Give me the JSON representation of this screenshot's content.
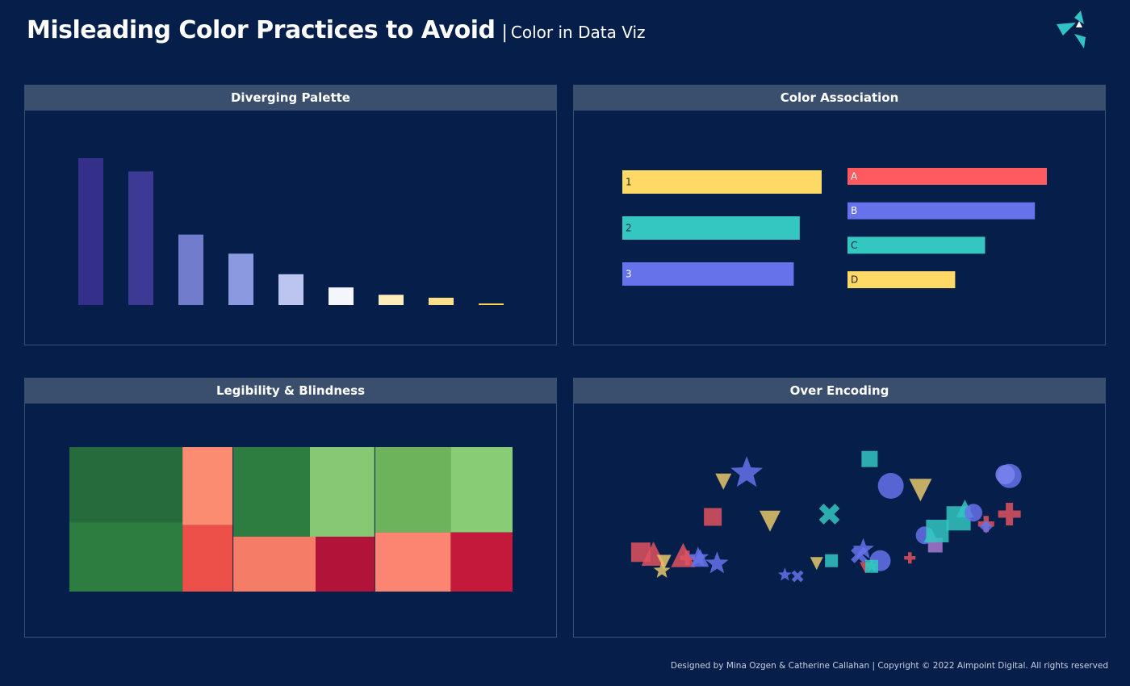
{
  "header": {
    "title": "Misleading Color Practices to Avoid",
    "separator": "|",
    "subtitle": "Color in Data Viz"
  },
  "panels": {
    "diverging": {
      "title": "Diverging Palette"
    },
    "association": {
      "title": "Color Association"
    },
    "legibility": {
      "title": "Legibility & Blindness"
    },
    "overencoding": {
      "title": "Over Encoding"
    }
  },
  "footer": {
    "credit": "Designed by Mina Ozgen & Catherine Callahan | Copyright © 2022 Aimpoint Digital. All rights reserved"
  },
  "colors": {
    "background": "#061e4a",
    "panel_header": "#3a4e6e",
    "accent_teal": "#32c4c4",
    "red": "#ff5a5f",
    "blue": "#6572ea",
    "teal": "#34c6c1",
    "yellow": "#ffd966"
  },
  "chart_data": [
    {
      "type": "bar",
      "values": [
        100,
        91,
        48,
        35,
        21,
        12,
        7,
        5,
        1
      ],
      "colors": [
        "#332f8a",
        "#3c3a94",
        "#717dcc",
        "#8b9ae0",
        "#bcc5ef",
        "#f4f6fd",
        "#ffecbd",
        "#ffe08a",
        "#ffd24d"
      ],
      "ylim": [
        0,
        100
      ]
    },
    {
      "type": "bar",
      "orientation": "horizontal",
      "groups": [
        {
          "categories": [
            "1",
            "2",
            "3"
          ],
          "values": [
            100,
            89,
            86
          ],
          "colors": [
            "#ffd966",
            "#34c6c1",
            "#6572ea"
          ]
        },
        {
          "categories": [
            "A",
            "B",
            "C",
            "D"
          ],
          "values": [
            100,
            94,
            69,
            54
          ],
          "colors": [
            "#ff5a5f",
            "#6572ea",
            "#34c6c1",
            "#ffd966"
          ]
        }
      ],
      "xlim": [
        0,
        100
      ]
    },
    {
      "type": "heatmap",
      "layout": "treemap",
      "groups": [
        {
          "weight": 37,
          "cells": [
            {
              "weight": 60,
              "value": 4,
              "color": "#256b3c"
            },
            {
              "weight": 40,
              "value": 5,
              "color": "#2e7d40"
            },
            {
              "weight": 30,
              "value": -2,
              "color": "#fb8c72"
            },
            {
              "weight": 25,
              "value": -3,
              "color": "#ec5048"
            }
          ]
        },
        {
          "weight": 32,
          "cells": [
            {
              "weight": 45,
              "value": 5,
              "color": "#2e7d40"
            },
            {
              "weight": 35,
              "value": 2,
              "color": "#86c874"
            },
            {
              "weight": 42,
              "value": -2,
              "color": "#f57d67"
            },
            {
              "weight": 28,
              "value": -5,
              "color": "#b21338"
            }
          ]
        },
        {
          "weight": 31,
          "cells": [
            {
              "weight": 45,
              "value": 3,
              "color": "#6cb35c"
            },
            {
              "weight": 40,
              "value": 2,
              "color": "#88cc76"
            },
            {
              "weight": 35,
              "value": -2,
              "color": "#fb8570"
            },
            {
              "weight": 25,
              "value": -4,
              "color": "#c4193a"
            }
          ]
        }
      ]
    },
    {
      "type": "scatter",
      "xlim": [
        0,
        100
      ],
      "ylim": [
        0,
        100
      ],
      "points": [
        {
          "x": 1.5,
          "y": 29,
          "shape": "square",
          "color": "#e0525f",
          "size": 24
        },
        {
          "x": 4.5,
          "y": 28,
          "shape": "triangle",
          "color": "#e0525f",
          "size": 30
        },
        {
          "x": 7.0,
          "y": 22,
          "shape": "triangle-down",
          "color": "#e6c86a",
          "size": 18
        },
        {
          "x": 6.5,
          "y": 16,
          "shape": "star",
          "color": "#e6c86a",
          "size": 22
        },
        {
          "x": 11.5,
          "y": 27,
          "shape": "triangle",
          "color": "#e0525f",
          "size": 30
        },
        {
          "x": 12.5,
          "y": 25,
          "shape": "cross",
          "color": "#e0525f",
          "size": 18
        },
        {
          "x": 15.0,
          "y": 25,
          "shape": "star",
          "color": "#6572ea",
          "size": 28
        },
        {
          "x": 15.5,
          "y": 25,
          "shape": "triangle",
          "color": "#6572ea",
          "size": 22
        },
        {
          "x": 18.5,
          "y": 54,
          "shape": "square",
          "color": "#e0525f",
          "size": 22
        },
        {
          "x": 19.5,
          "y": 21,
          "shape": "star",
          "color": "#6572ea",
          "size": 30
        },
        {
          "x": 21.0,
          "y": 79,
          "shape": "triangle-down",
          "color": "#e6c86a",
          "size": 20
        },
        {
          "x": 26.5,
          "y": 85,
          "shape": "star",
          "color": "#6572ea",
          "size": 42
        },
        {
          "x": 32.0,
          "y": 51,
          "shape": "triangle-down",
          "color": "#e6c86a",
          "size": 26
        },
        {
          "x": 35.5,
          "y": 13,
          "shape": "star",
          "color": "#6572ea",
          "size": 18
        },
        {
          "x": 38.5,
          "y": 12,
          "shape": "x",
          "color": "#6572ea",
          "size": 16
        },
        {
          "x": 43.0,
          "y": 21,
          "shape": "triangle-down",
          "color": "#e6c86a",
          "size": 16
        },
        {
          "x": 46.0,
          "y": 56,
          "shape": "x",
          "color": "#34c6c1",
          "size": 28
        },
        {
          "x": 46.5,
          "y": 23,
          "shape": "square",
          "color": "#34c6c1",
          "size": 16
        },
        {
          "x": 53.0,
          "y": 27,
          "shape": "x",
          "color": "#6572ea",
          "size": 22
        },
        {
          "x": 54.0,
          "y": 31,
          "shape": "star",
          "color": "#6572ea",
          "size": 28
        },
        {
          "x": 58.0,
          "y": 23,
          "shape": "circle",
          "color": "#6572ea",
          "size": 26
        },
        {
          "x": 54.5,
          "y": 18,
          "shape": "triangle-down",
          "color": "#e0525f",
          "size": 14
        },
        {
          "x": 56.0,
          "y": 19,
          "shape": "square",
          "color": "#34c6c1",
          "size": 16
        },
        {
          "x": 56.0,
          "y": 19,
          "shape": "star",
          "color": "#34c6c1",
          "size": 18
        },
        {
          "x": 55.5,
          "y": 95,
          "shape": "square",
          "color": "#34c6c1",
          "size": 20
        },
        {
          "x": 60.5,
          "y": 76,
          "shape": "circle",
          "color": "#6572ea",
          "size": 32
        },
        {
          "x": 65.0,
          "y": 25,
          "shape": "cross",
          "color": "#e0525f",
          "size": 14
        },
        {
          "x": 67.5,
          "y": 73,
          "shape": "triangle-down",
          "color": "#e6c86a",
          "size": 28
        },
        {
          "x": 68.5,
          "y": 41,
          "shape": "circle",
          "color": "#6572ea",
          "size": 22
        },
        {
          "x": 70.0,
          "y": 41,
          "shape": "triangle",
          "color": "#34c6c1",
          "size": 18
        },
        {
          "x": 71.0,
          "y": 34,
          "shape": "square",
          "color": "#a87ad0",
          "size": 18
        },
        {
          "x": 71.5,
          "y": 44,
          "shape": "square",
          "color": "#34c6c1",
          "size": 28
        },
        {
          "x": 76.5,
          "y": 53,
          "shape": "square",
          "color": "#34c6c1",
          "size": 30
        },
        {
          "x": 78.0,
          "y": 60,
          "shape": "triangle",
          "color": "#34c6c1",
          "size": 22
        },
        {
          "x": 80.0,
          "y": 57,
          "shape": "circle",
          "color": "#6572ea",
          "size": 22
        },
        {
          "x": 83.0,
          "y": 49,
          "shape": "cross",
          "color": "#e0525f",
          "size": 20
        },
        {
          "x": 83.0,
          "y": 47,
          "shape": "diamond",
          "color": "#6572ea",
          "size": 16
        },
        {
          "x": 88.5,
          "y": 56,
          "shape": "cross",
          "color": "#e0525f",
          "size": 28
        },
        {
          "x": 88.5,
          "y": 83,
          "shape": "circle",
          "color": "#6572ea",
          "size": 30
        },
        {
          "x": 87.5,
          "y": 84,
          "shape": "circle",
          "color": "#7a84f0",
          "size": 24
        }
      ]
    }
  ]
}
